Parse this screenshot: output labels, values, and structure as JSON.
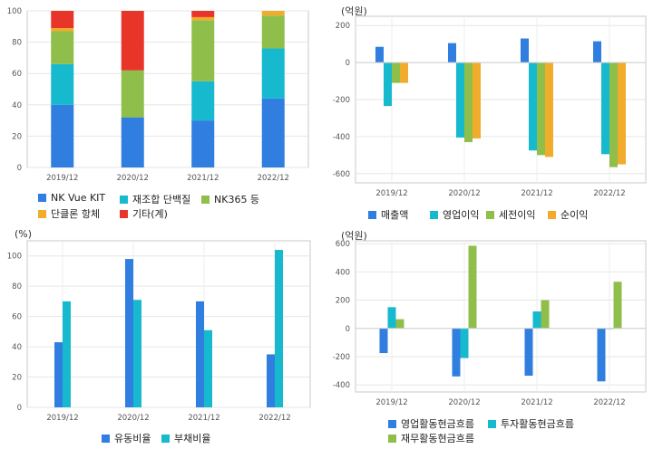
{
  "charts": [
    {
      "id": "c1",
      "unit": "",
      "chart_data": {
        "type": "bar",
        "stacked": true,
        "categories": [
          "2019/12",
          "2020/12",
          "2021/12",
          "2022/12"
        ],
        "ylim": [
          0,
          100
        ],
        "yticks": [
          0,
          20,
          40,
          60,
          80,
          100
        ],
        "grid": true,
        "legend_position": "bottom",
        "series": [
          {
            "name": "NK Vue KIT",
            "color": "#2f7ee0",
            "values": [
              40,
              32,
              30,
              44
            ]
          },
          {
            "name": "재조합 단백질",
            "color": "#17b9cf",
            "values": [
              26,
              0,
              25,
              32
            ]
          },
          {
            "name": "NK365 등",
            "color": "#8fbf4a",
            "values": [
              21,
              30,
              39,
              21
            ]
          },
          {
            "name": "단클론 항체",
            "color": "#f2ac2c",
            "values": [
              2,
              0,
              2,
              3
            ]
          },
          {
            "name": "기타(계)",
            "color": "#e7352a",
            "values": [
              11,
              38,
              4,
              0
            ]
          }
        ]
      }
    },
    {
      "id": "c2",
      "unit": "(억원)",
      "chart_data": {
        "type": "bar",
        "categories": [
          "2019/12",
          "2020/12",
          "2021/12",
          "2022/12"
        ],
        "ylim": [
          -650,
          250
        ],
        "yticks": [
          -600,
          -400,
          -200,
          0,
          200
        ],
        "grid": true,
        "legend_position": "bottom",
        "series": [
          {
            "name": "매출액",
            "color": "#2f7ee0",
            "values": [
              85,
              105,
              130,
              115
            ]
          },
          {
            "name": "영업이익",
            "color": "#17b9cf",
            "values": [
              -235,
              -405,
              -475,
              -495
            ]
          },
          {
            "name": "세전이익",
            "color": "#8fbf4a",
            "values": [
              -110,
              -430,
              -500,
              -565
            ]
          },
          {
            "name": "순이익",
            "color": "#f2ac2c",
            "values": [
              -110,
              -410,
              -510,
              -550
            ]
          }
        ]
      }
    },
    {
      "id": "c3",
      "unit": "(%)",
      "chart_data": {
        "type": "bar",
        "categories": [
          "2019/12",
          "2020/12",
          "2021/12",
          "2022/12"
        ],
        "ylim": [
          0,
          110
        ],
        "yticks": [
          0,
          20,
          40,
          60,
          80,
          100
        ],
        "grid": true,
        "legend_position": "bottom",
        "series": [
          {
            "name": "유동비율",
            "color": "#2f7ee0",
            "values": [
              43,
              98,
              70,
              35
            ]
          },
          {
            "name": "부채비율",
            "color": "#17b9cf",
            "values": [
              70,
              71,
              51,
              104
            ]
          }
        ]
      }
    },
    {
      "id": "c4",
      "unit": "(억원)",
      "chart_data": {
        "type": "bar",
        "categories": [
          "2019/12",
          "2020/12",
          "2021/12",
          "2022/12"
        ],
        "ylim": [
          -450,
          620
        ],
        "yticks": [
          -400,
          -200,
          0,
          200,
          400,
          600
        ],
        "grid": true,
        "legend_position": "bottom",
        "series": [
          {
            "name": "영업활동현금흐름",
            "color": "#2f7ee0",
            "values": [
              -175,
              -340,
              -335,
              -375
            ]
          },
          {
            "name": "투자활동현금흐름",
            "color": "#17b9cf",
            "values": [
              150,
              -210,
              120,
              -5
            ]
          },
          {
            "name": "재무활동현금흐름",
            "color": "#8fbf4a",
            "values": [
              65,
              585,
              200,
              330
            ]
          }
        ]
      }
    }
  ]
}
